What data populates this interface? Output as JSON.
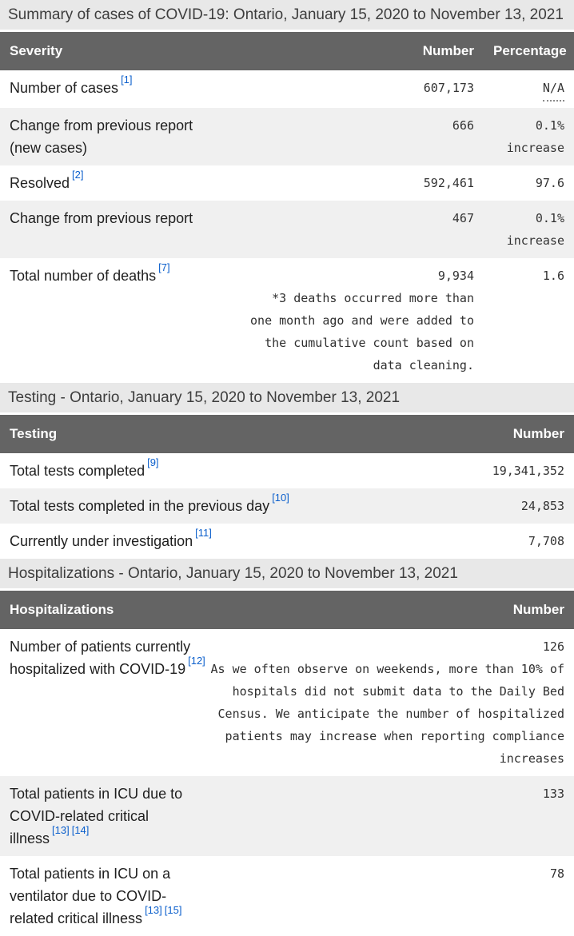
{
  "page": {
    "colors": {
      "caption_bg": "#e8e8e8",
      "table_header_bg": "#646464",
      "table_header_text": "#ffffff",
      "stripe_bg": "#f0f0f0",
      "footnote_link": "#0b5fcc"
    }
  },
  "tables": [
    {
      "id": "summary",
      "caption": "Summary of cases of COVID-19: Ontario, January 15, 2020 to November 13, 2021",
      "columns": [
        {
          "label": "Severity",
          "align": "left"
        },
        {
          "label": "Number",
          "align": "right"
        },
        {
          "label": "Percentage",
          "align": "right"
        }
      ],
      "rows": [
        {
          "label": "Number of cases",
          "refs": [
            "[1]"
          ],
          "cells": [
            {
              "value": "607,173"
            },
            {
              "value": "N/A",
              "abbr": true
            }
          ]
        },
        {
          "label": "Change from previous report (new cases)",
          "refs": [],
          "cells": [
            {
              "value": "666"
            },
            {
              "value": "0.1% increase"
            }
          ]
        },
        {
          "label": "Resolved",
          "refs": [
            "[2]"
          ],
          "cells": [
            {
              "value": "592,461"
            },
            {
              "value": "97.6"
            }
          ]
        },
        {
          "label": "Change from previous report",
          "refs": [],
          "cells": [
            {
              "value": "467"
            },
            {
              "value": "0.1% increase"
            }
          ]
        },
        {
          "label": "Total number of deaths",
          "refs": [
            "[7]"
          ],
          "cells": [
            {
              "value": "9,934",
              "note_lines": [
                "*3 deaths occurred more than",
                "one month ago and were added to",
                "the cumulative count based on",
                "data cleaning."
              ]
            },
            {
              "value": "1.6"
            }
          ]
        }
      ]
    },
    {
      "id": "testing",
      "caption": "Testing - Ontario, January 15, 2020 to November 13, 2021",
      "columns": [
        {
          "label": "Testing",
          "align": "left"
        },
        {
          "label": "Number",
          "align": "right"
        }
      ],
      "rows": [
        {
          "label": "Total tests completed",
          "refs": [
            "[9]"
          ],
          "cells": [
            {
              "value": "19,341,352"
            }
          ]
        },
        {
          "label": "Total tests completed in the previous day",
          "refs": [
            "[10]"
          ],
          "cells": [
            {
              "value": "24,853"
            }
          ]
        },
        {
          "label": "Currently under investigation",
          "refs": [
            "[11]"
          ],
          "cells": [
            {
              "value": "7,708"
            }
          ]
        }
      ]
    },
    {
      "id": "hospitalizations",
      "caption": "Hospitalizations - Ontario, January 15, 2020 to November 13, 2021",
      "columns": [
        {
          "label": "Hospitalizations",
          "align": "left"
        },
        {
          "label": "Number",
          "align": "right"
        }
      ],
      "rows": [
        {
          "label": "Number of patients currently hospitalized with COVID-19",
          "refs": [
            "[12]"
          ],
          "cells": [
            {
              "value": "126",
              "note_lines": [
                "As we often observe on weekends, more than 10% of",
                "hospitals did not submit data to the Daily Bed",
                "Census. We anticipate the number of hospitalized",
                "patients may increase when reporting compliance",
                "increases"
              ]
            }
          ]
        },
        {
          "label": "Total patients in ICU due to COVID-related critical illness",
          "refs": [
            "[13]",
            "[14]"
          ],
          "cells": [
            {
              "value": "133"
            }
          ]
        },
        {
          "label": "Total patients in ICU on a ventilator due to COVID-related critical illness",
          "refs": [
            "[13]",
            "[15]"
          ],
          "cells": [
            {
              "value": "78"
            }
          ]
        }
      ]
    }
  ]
}
